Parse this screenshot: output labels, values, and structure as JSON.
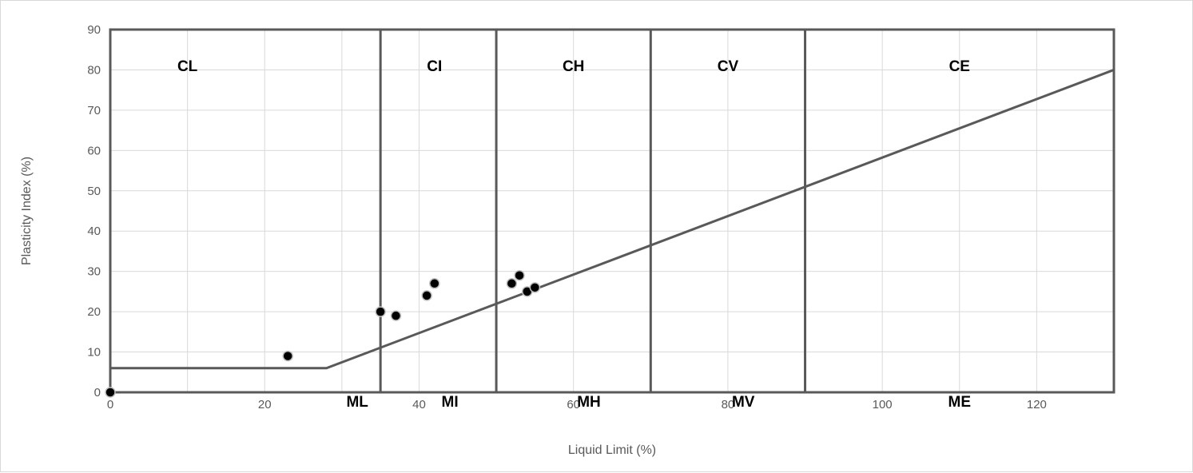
{
  "chart_data": {
    "type": "scatter",
    "title": "",
    "xlabel": "Liquid Limit (%)",
    "ylabel": "Plasticity Index (%)",
    "xlim": [
      0,
      130
    ],
    "ylim": [
      0,
      90
    ],
    "x_ticks": [
      "0",
      "20",
      "40",
      "60",
      "80",
      "100",
      "120"
    ],
    "y_ticks": [
      "0",
      "10",
      "20",
      "30",
      "40",
      "50",
      "60",
      "70",
      "80",
      "90"
    ],
    "grid": true,
    "legend": "none",
    "points": [
      {
        "x": 0,
        "y": 0
      },
      {
        "x": 23,
        "y": 9
      },
      {
        "x": 35,
        "y": 20
      },
      {
        "x": 37,
        "y": 19
      },
      {
        "x": 41,
        "y": 24
      },
      {
        "x": 42,
        "y": 27
      },
      {
        "x": 52,
        "y": 27
      },
      {
        "x": 53,
        "y": 29
      },
      {
        "x": 54,
        "y": 25
      },
      {
        "x": 55,
        "y": 26
      }
    ],
    "a_line": [
      [
        0,
        6
      ],
      [
        28,
        6
      ],
      [
        130,
        80
      ]
    ],
    "zone_boundaries_x": [
      35,
      50,
      70,
      90
    ],
    "zone_labels_top": [
      {
        "label": "CL",
        "x": 10
      },
      {
        "label": "CI",
        "x": 42
      },
      {
        "label": "CH",
        "x": 60
      },
      {
        "label": "CV",
        "x": 80
      },
      {
        "label": "CE",
        "x": 110
      }
    ],
    "zone_labels_bottom": [
      {
        "label": "ML",
        "x": 32
      },
      {
        "label": "MI",
        "x": 44
      },
      {
        "label": "MH",
        "x": 62
      },
      {
        "label": "MV",
        "x": 82
      },
      {
        "label": "ME",
        "x": 110
      }
    ],
    "colors": {
      "line": "#595959",
      "grid": "#d9d9d9",
      "marker_fill": "#000000",
      "marker_edge": "#bfbfbf"
    }
  }
}
